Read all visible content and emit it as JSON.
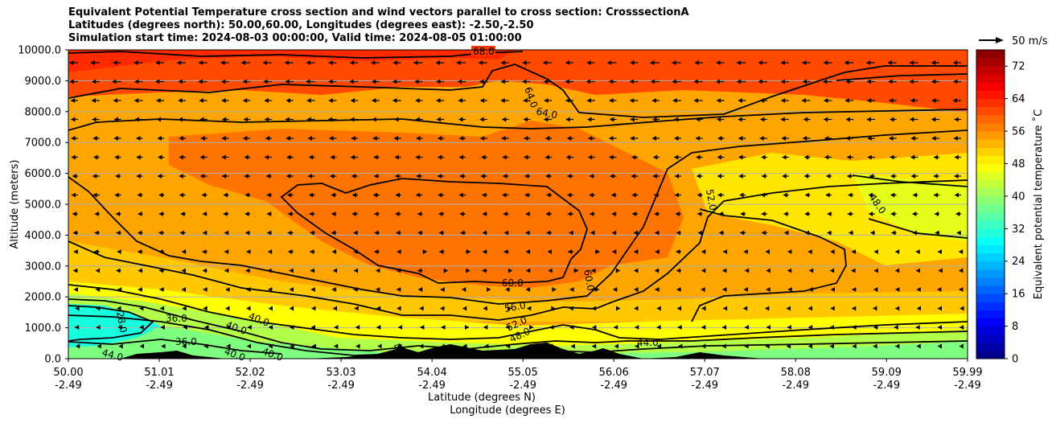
{
  "title_lines": [
    "Equivalent Potential Temperature cross section and wind vectors parallel to cross section: CrosssectionA",
    "Latitudes (degrees north): 50.00,60.00, Longitudes (degrees east): -2.50,-2.50",
    "Simulation start time: 2024-08-03 00:00:00, Valid time: 2024-08-05 01:00:00"
  ],
  "chart_data": {
    "type": "heatmap",
    "subtype": "filled-contour cross section with wind vectors",
    "title": "Equivalent Potential Temperature cross section and wind vectors parallel to cross section: CrosssectionA",
    "xlabel": "Latitude (degrees N)",
    "xlabel2": "Longitude (degrees E)",
    "ylabel": "Altitude (meters)",
    "xlim": [
      50.0,
      59.99
    ],
    "ylim": [
      0,
      10000
    ],
    "x_ticks": [
      {
        "lat": "50.00",
        "lon": "-2.49"
      },
      {
        "lat": "51.01",
        "lon": "-2.49"
      },
      {
        "lat": "52.02",
        "lon": "-2.49"
      },
      {
        "lat": "53.03",
        "lon": "-2.49"
      },
      {
        "lat": "54.04",
        "lon": "-2.49"
      },
      {
        "lat": "55.05",
        "lon": "-2.49"
      },
      {
        "lat": "56.06",
        "lon": "-2.49"
      },
      {
        "lat": "57.07",
        "lon": "-2.49"
      },
      {
        "lat": "58.08",
        "lon": "-2.49"
      },
      {
        "lat": "59.09",
        "lon": "-2.49"
      },
      {
        "lat": "59.99",
        "lon": "-2.49"
      }
    ],
    "y_ticks": [
      "0.0",
      "1000.0",
      "2000.0",
      "3000.0",
      "4000.0",
      "5000.0",
      "6000.0",
      "7000.0",
      "8000.0",
      "9000.0",
      "10000.0"
    ],
    "grid": "horizontal",
    "colorbar": {
      "label": "Equivalent potential temperature ˚C",
      "min": 0,
      "max": 76,
      "ticks": [
        "0",
        "8",
        "16",
        "24",
        "32",
        "40",
        "48",
        "56",
        "64",
        "72"
      ],
      "colormap": "jet"
    },
    "contour_labels": [
      "68.0",
      "64.0",
      "64.0",
      "60.0",
      "60.0",
      "56.0",
      "52.0",
      "52.0",
      "48.0",
      "48.0",
      "44.0",
      "44.0",
      "40.0",
      "40.0",
      "40.0",
      "40.0",
      "40.0",
      "36.0",
      "36.0",
      "28.0"
    ],
    "wind_reference": {
      "label": "50 m/s",
      "value": 50
    },
    "wind_dominant_direction": "left",
    "terrain_color": "#000000"
  }
}
